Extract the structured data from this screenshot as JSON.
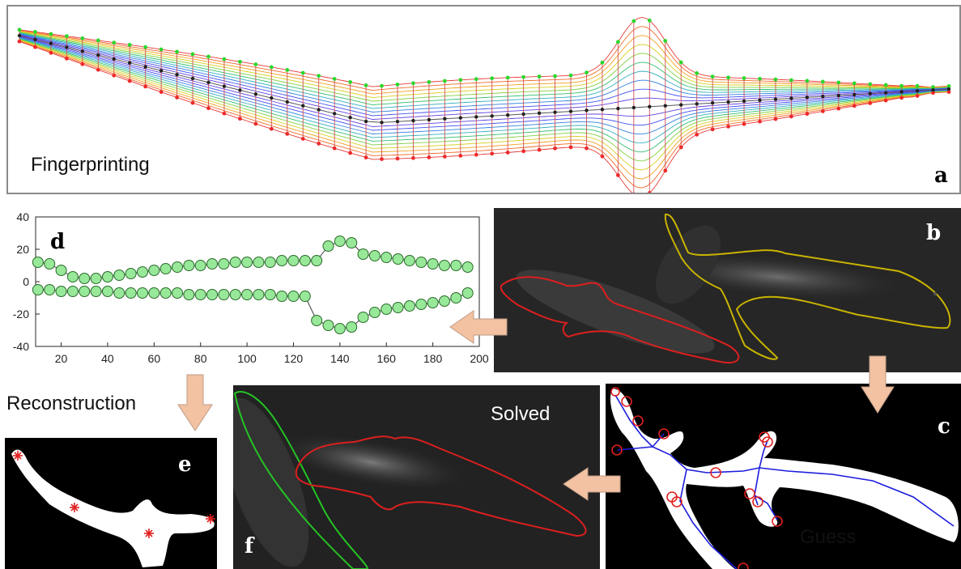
{
  "panel_a": {
    "caption": "Fingerprinting",
    "letter": "a"
  },
  "panel_b": {
    "letter": "b"
  },
  "panel_c": {
    "caption": "Guess",
    "letter": "c"
  },
  "panel_d": {
    "letter": "d"
  },
  "panel_e": {
    "letter": "e",
    "side_caption": "Reconstruction"
  },
  "panel_f": {
    "caption": "Solved",
    "letter": "f"
  },
  "colors": {
    "frame": "#8a8a8a",
    "arrow": "#f2c2a2",
    "arrow_stroke": "#bf9a84",
    "marker_fill": "#98e89a",
    "marker_stroke": "#2a6a2a",
    "outline_red": "#dd1f1f",
    "outline_yellow": "#c9b400",
    "outline_green": "#24c424",
    "skeleton": "#1c1cdd"
  },
  "chart_data": {
    "type": "scatter",
    "title": "",
    "xlabel": "",
    "ylabel": "",
    "xlim": [
      9,
      200
    ],
    "ylim": [
      -40,
      40
    ],
    "x_ticks": [
      20,
      40,
      60,
      80,
      100,
      120,
      140,
      160,
      180,
      200
    ],
    "y_ticks": [
      40,
      20,
      0,
      -20,
      -40
    ],
    "grid": false,
    "series": [
      {
        "x": [
          10,
          15,
          20,
          25,
          30,
          35,
          40,
          45,
          50,
          55,
          60,
          65,
          70,
          75,
          80,
          85,
          90,
          95,
          100,
          105,
          110,
          115,
          120,
          125,
          130,
          135,
          140,
          145,
          150,
          155,
          160,
          165,
          170,
          175,
          180,
          185,
          190,
          195
        ],
        "values": [
          12,
          11,
          7,
          3,
          2,
          2,
          3,
          4,
          5,
          6,
          7,
          8,
          9,
          10,
          10,
          11,
          11,
          12,
          12,
          12,
          12,
          13,
          13,
          13,
          13,
          22,
          25,
          24,
          17,
          16,
          15,
          14,
          13,
          12,
          11,
          10,
          10,
          9
        ]
      },
      {
        "x": [
          10,
          15,
          20,
          25,
          30,
          35,
          40,
          45,
          50,
          55,
          60,
          65,
          70,
          75,
          80,
          85,
          90,
          95,
          100,
          105,
          110,
          115,
          120,
          125,
          130,
          135,
          140,
          145,
          150,
          155,
          160,
          165,
          170,
          175,
          180,
          185,
          190,
          195
        ],
        "values": [
          -5,
          -5,
          -6,
          -6,
          -6,
          -6,
          -6,
          -7,
          -7,
          -7,
          -7,
          -7,
          -7,
          -8,
          -8,
          -8,
          -8,
          -8,
          -8,
          -8,
          -8,
          -9,
          -9,
          -9,
          -24,
          -27,
          -29,
          -28,
          -22,
          -19,
          -17,
          -16,
          -15,
          -14,
          -13,
          -12,
          -10,
          -7
        ]
      }
    ]
  }
}
